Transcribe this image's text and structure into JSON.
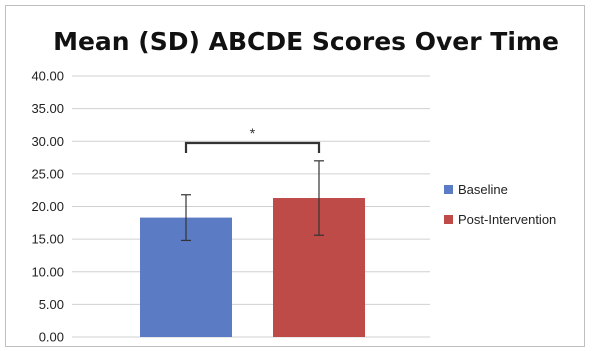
{
  "chart_data": {
    "type": "bar",
    "title": "Mean (SD) ABCDE Scores Over Time",
    "xlabel": "",
    "ylabel": "",
    "ylim": [
      0,
      40
    ],
    "yticks": [
      "0.00",
      "5.00",
      "10.00",
      "15.00",
      "20.00",
      "25.00",
      "30.00",
      "35.00",
      "40.00"
    ],
    "grid": true,
    "legend_position": "right",
    "series": [
      {
        "name": "Baseline",
        "value": 18.3,
        "sd": 3.5,
        "color": "#5b7bc4"
      },
      {
        "name": "Post-Intervention",
        "value": 21.3,
        "sd": 5.7,
        "color": "#be4b48"
      }
    ],
    "annotation": {
      "type": "significance-bracket",
      "label": "*"
    }
  }
}
